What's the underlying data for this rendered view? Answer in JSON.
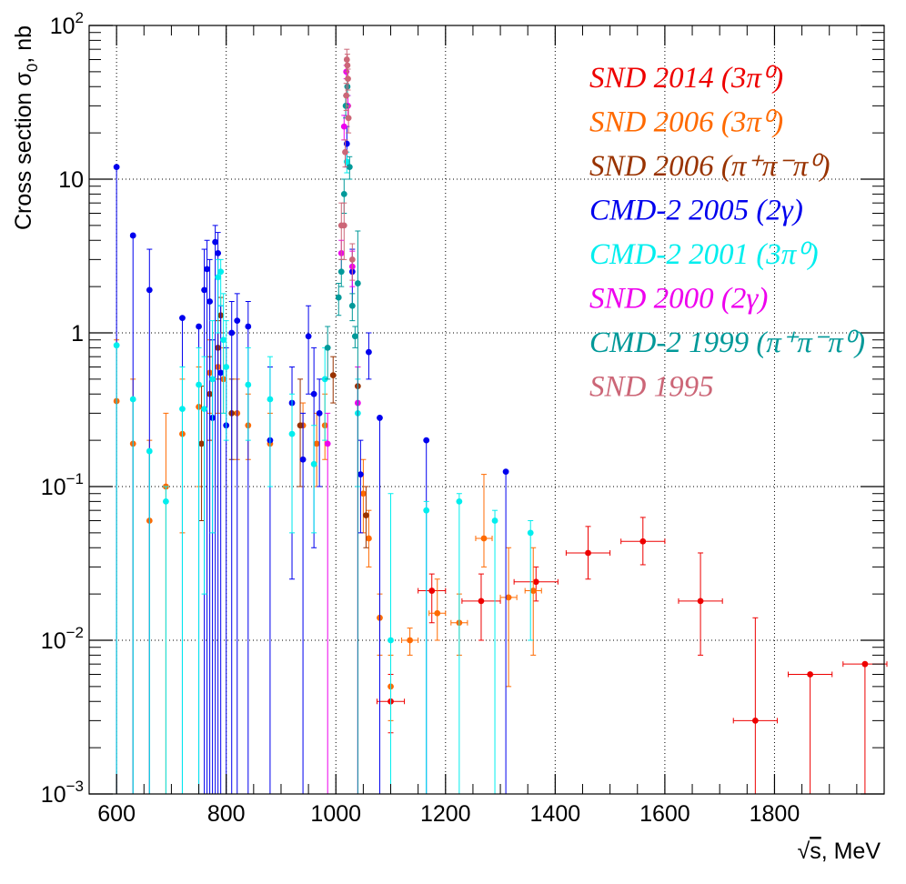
{
  "chart_data": {
    "type": "scatter",
    "title": "",
    "xlabel_parts": {
      "root": "√",
      "var": "s",
      "unit": ", MeV"
    },
    "ylabel_parts": {
      "prefix": "Cross section  σ",
      "sub": "0",
      "suffix": ", nb"
    },
    "x_scale": "linear",
    "y_scale": "log",
    "xlim": [
      550,
      2000
    ],
    "ylim": [
      0.001,
      100
    ],
    "grid": true,
    "legend_position": "top-right",
    "x_ticks": [
      {
        "value": 600,
        "label": "600"
      },
      {
        "value": 800,
        "label": "800"
      },
      {
        "value": 1000,
        "label": "1000"
      },
      {
        "value": 1200,
        "label": "1200"
      },
      {
        "value": 1400,
        "label": "1400"
      },
      {
        "value": 1600,
        "label": "1600"
      },
      {
        "value": 1800,
        "label": "1800"
      }
    ],
    "y_ticks": [
      {
        "value": 0.001,
        "base": "10",
        "exp": "−3"
      },
      {
        "value": 0.01,
        "base": "10",
        "exp": "−2"
      },
      {
        "value": 0.1,
        "base": "10",
        "exp": "−1"
      },
      {
        "value": 1,
        "base": "1",
        "exp": ""
      },
      {
        "value": 10,
        "base": "10",
        "exp": ""
      },
      {
        "value": 100,
        "base": "10",
        "exp": "2"
      }
    ],
    "series": [
      {
        "name": "SND 2014 (3π⁰)",
        "color": "#ee0000",
        "points": [
          {
            "x": 1100,
            "y": 0.004,
            "lo": 0.0025,
            "hi": 0.006,
            "xerr": 25
          },
          {
            "x": 1175,
            "y": 0.021,
            "lo": 0.013,
            "hi": 0.027,
            "xerr": 25
          },
          {
            "x": 1265,
            "y": 0.018,
            "lo": 0.01,
            "hi": 0.027,
            "xerr": 35
          },
          {
            "x": 1365,
            "y": 0.024,
            "lo": 0.018,
            "hi": 0.03,
            "xerr": 40
          },
          {
            "x": 1460,
            "y": 0.037,
            "lo": 0.025,
            "hi": 0.055,
            "xerr": 40
          },
          {
            "x": 1560,
            "y": 0.044,
            "lo": 0.031,
            "hi": 0.063,
            "xerr": 40
          },
          {
            "x": 1665,
            "y": 0.018,
            "lo": 0.008,
            "hi": 0.037,
            "xerr": 40
          },
          {
            "x": 1765,
            "y": 0.003,
            "lo": 0.001,
            "hi": 0.014,
            "xerr": 40
          },
          {
            "x": 1865,
            "y": 0.006,
            "lo": 0.001,
            "hi": 0.006,
            "xerr": 40
          },
          {
            "x": 1965,
            "y": 0.007,
            "lo": 0.001,
            "hi": 0.007,
            "xerr": 40
          }
        ]
      },
      {
        "name": "SND 2006 (3π⁰)",
        "color": "#ff6a00",
        "points": [
          {
            "x": 600,
            "y": 0.36,
            "lo": 0.001,
            "hi": 0.9
          },
          {
            "x": 630,
            "y": 0.19,
            "lo": 0.001,
            "hi": 0.5
          },
          {
            "x": 660,
            "y": 0.06,
            "lo": 0.001,
            "hi": 0.2
          },
          {
            "x": 690,
            "y": 0.1,
            "lo": 0.001,
            "hi": 0.3
          },
          {
            "x": 720,
            "y": 0.22,
            "lo": 0.05,
            "hi": 0.5
          },
          {
            "x": 750,
            "y": 0.33,
            "lo": 0.1,
            "hi": 0.6
          },
          {
            "x": 770,
            "y": 0.55,
            "lo": 0.3,
            "hi": 0.9
          },
          {
            "x": 785,
            "y": 0.6,
            "lo": 0.3,
            "hi": 1.0
          },
          {
            "x": 795,
            "y": 0.5,
            "lo": 0.3,
            "hi": 0.8
          },
          {
            "x": 820,
            "y": 0.3,
            "lo": 0.15,
            "hi": 0.5
          },
          {
            "x": 840,
            "y": 0.25,
            "lo": 0.15,
            "hi": 0.4
          },
          {
            "x": 880,
            "y": 0.19,
            "lo": 0.1,
            "hi": 0.3
          },
          {
            "x": 940,
            "y": 0.25,
            "lo": 0.15,
            "hi": 0.35
          },
          {
            "x": 965,
            "y": 0.19,
            "lo": 0.1,
            "hi": 0.3
          },
          {
            "x": 980,
            "y": 0.25,
            "lo": 0.15,
            "hi": 0.4
          },
          {
            "x": 1050,
            "y": 0.09,
            "lo": 0.05,
            "hi": 0.15
          },
          {
            "x": 1060,
            "y": 0.046,
            "lo": 0.03,
            "hi": 0.07
          },
          {
            "x": 1080,
            "y": 0.014,
            "lo": 0.008,
            "hi": 0.02
          },
          {
            "x": 1100,
            "y": 0.005,
            "lo": 0.003,
            "hi": 0.008
          },
          {
            "x": 1135,
            "y": 0.01,
            "lo": 0.008,
            "hi": 0.012,
            "xerr": 15
          },
          {
            "x": 1185,
            "y": 0.015,
            "lo": 0.01,
            "hi": 0.025,
            "xerr": 15
          },
          {
            "x": 1225,
            "y": 0.013,
            "lo": 0.008,
            "hi": 0.02,
            "xerr": 15
          },
          {
            "x": 1270,
            "y": 0.046,
            "lo": 0.03,
            "hi": 0.12,
            "xerr": 15
          },
          {
            "x": 1315,
            "y": 0.019,
            "lo": 0.005,
            "hi": 0.04,
            "xerr": 15
          },
          {
            "x": 1360,
            "y": 0.021,
            "lo": 0.008,
            "hi": 0.04,
            "xerr": 15
          }
        ]
      },
      {
        "name": "SND 2006 (π⁺π⁻π⁰)",
        "color": "#993300",
        "points": [
          {
            "x": 755,
            "y": 0.19,
            "lo": 0.06,
            "hi": 0.45
          },
          {
            "x": 770,
            "y": 0.4,
            "lo": 0.2,
            "hi": 0.7
          },
          {
            "x": 785,
            "y": 0.8,
            "lo": 0.5,
            "hi": 1.2
          },
          {
            "x": 790,
            "y": 1.3,
            "lo": 1.0,
            "hi": 1.7
          },
          {
            "x": 810,
            "y": 0.3,
            "lo": 0.15,
            "hi": 0.5
          },
          {
            "x": 935,
            "y": 0.25,
            "lo": 0.1,
            "hi": 0.5
          },
          {
            "x": 995,
            "y": 0.53,
            "lo": 0.35,
            "hi": 0.7
          },
          {
            "x": 1040,
            "y": 0.45,
            "lo": 0.3,
            "hi": 0.6
          },
          {
            "x": 1055,
            "y": 0.065,
            "lo": 0.04,
            "hi": 0.1
          }
        ]
      },
      {
        "name": "CMD-2 2005 (2γ)",
        "color": "#0000ee",
        "points": [
          {
            "x": 600,
            "y": 12,
            "lo": 0.001,
            "hi": 12
          },
          {
            "x": 630,
            "y": 4.3,
            "lo": 0.001,
            "hi": 4.3
          },
          {
            "x": 660,
            "y": 1.9,
            "lo": 0.001,
            "hi": 3.5
          },
          {
            "x": 720,
            "y": 1.25,
            "lo": 0.001,
            "hi": 1.25
          },
          {
            "x": 750,
            "y": 1.1,
            "lo": 0.001,
            "hi": 1.1
          },
          {
            "x": 760,
            "y": 1.9,
            "lo": 0.001,
            "hi": 3.5
          },
          {
            "x": 765,
            "y": 2.6,
            "lo": 0.001,
            "hi": 4.0
          },
          {
            "x": 770,
            "y": 1.6,
            "lo": 0.001,
            "hi": 3.0
          },
          {
            "x": 775,
            "y": 0.28,
            "lo": 0.001,
            "hi": 0.9
          },
          {
            "x": 780,
            "y": 3.9,
            "lo": 0.001,
            "hi": 5.0
          },
          {
            "x": 785,
            "y": 3.3,
            "lo": 0.001,
            "hi": 4.5
          },
          {
            "x": 790,
            "y": 0.55,
            "lo": 0.001,
            "hi": 1.5
          },
          {
            "x": 800,
            "y": 0.25,
            "lo": 0.001,
            "hi": 0.8
          },
          {
            "x": 810,
            "y": 1.0,
            "lo": 0.001,
            "hi": 1.6
          },
          {
            "x": 820,
            "y": 1.2,
            "lo": 0.001,
            "hi": 1.8
          },
          {
            "x": 840,
            "y": 1.1,
            "lo": 0.001,
            "hi": 1.6
          },
          {
            "x": 880,
            "y": 0.2,
            "lo": 0.001,
            "hi": 0.6
          },
          {
            "x": 920,
            "y": 0.35,
            "lo": 0.025,
            "hi": 0.6
          },
          {
            "x": 940,
            "y": 0.15,
            "lo": 0.001,
            "hi": 0.3
          },
          {
            "x": 950,
            "y": 0.95,
            "lo": 0.4,
            "hi": 1.5
          },
          {
            "x": 960,
            "y": 0.4,
            "lo": 0.04,
            "hi": 0.8
          },
          {
            "x": 970,
            "y": 0.3,
            "lo": 0.1,
            "hi": 0.5
          },
          {
            "x": 1020,
            "y": 17,
            "lo": 12,
            "hi": 22
          },
          {
            "x": 1030,
            "y": 2.5,
            "lo": 1.5,
            "hi": 3.5
          },
          {
            "x": 1045,
            "y": 0.12,
            "lo": 0.05,
            "hi": 0.2
          },
          {
            "x": 1060,
            "y": 0.75,
            "lo": 0.5,
            "hi": 1.0
          },
          {
            "x": 1080,
            "y": 0.28,
            "lo": 0.001,
            "hi": 0.28
          },
          {
            "x": 1165,
            "y": 0.2,
            "lo": 0.001,
            "hi": 0.2
          },
          {
            "x": 1310,
            "y": 0.125,
            "lo": 0.001,
            "hi": 0.125
          }
        ]
      },
      {
        "name": "CMD-2 2001 (3π⁰)",
        "color": "#00eeee",
        "points": [
          {
            "x": 600,
            "y": 0.83,
            "lo": 0.001,
            "hi": 0.83
          },
          {
            "x": 630,
            "y": 0.37,
            "lo": 0.001,
            "hi": 0.37
          },
          {
            "x": 660,
            "y": 0.17,
            "lo": 0.001,
            "hi": 0.17
          },
          {
            "x": 690,
            "y": 0.08,
            "lo": 0.001,
            "hi": 0.1
          },
          {
            "x": 720,
            "y": 0.32,
            "lo": 0.001,
            "hi": 0.6
          },
          {
            "x": 750,
            "y": 0.46,
            "lo": 0.001,
            "hi": 0.8
          },
          {
            "x": 760,
            "y": 0.32,
            "lo": 0.02,
            "hi": 0.7
          },
          {
            "x": 775,
            "y": 0.5,
            "lo": 0.05,
            "hi": 1.2
          },
          {
            "x": 785,
            "y": 2.3,
            "lo": 1.0,
            "hi": 3.0
          },
          {
            "x": 790,
            "y": 2.5,
            "lo": 1.5,
            "hi": 3.0
          },
          {
            "x": 795,
            "y": 0.9,
            "lo": 0.3,
            "hi": 1.8
          },
          {
            "x": 800,
            "y": 0.6,
            "lo": 0.2,
            "hi": 1.2
          },
          {
            "x": 840,
            "y": 0.46,
            "lo": 0.2,
            "hi": 0.8
          },
          {
            "x": 880,
            "y": 0.37,
            "lo": 0.1,
            "hi": 0.7
          },
          {
            "x": 920,
            "y": 0.22,
            "lo": 0.05,
            "hi": 0.4
          },
          {
            "x": 960,
            "y": 0.14,
            "lo": 0.05,
            "hi": 0.25
          },
          {
            "x": 980,
            "y": 0.5,
            "lo": 0.2,
            "hi": 0.8
          },
          {
            "x": 1020,
            "y": 13,
            "lo": 11,
            "hi": 15
          },
          {
            "x": 1040,
            "y": 0.3,
            "lo": 0.1,
            "hi": 0.5
          },
          {
            "x": 1100,
            "y": 0.01,
            "lo": 0.001,
            "hi": 0.09
          },
          {
            "x": 1165,
            "y": 0.07,
            "lo": 0.001,
            "hi": 0.08
          },
          {
            "x": 1225,
            "y": 0.08,
            "lo": 0.001,
            "hi": 0.09
          },
          {
            "x": 1290,
            "y": 0.06,
            "lo": 0.001,
            "hi": 0.07
          },
          {
            "x": 1355,
            "y": 0.05,
            "lo": 0.01,
            "hi": 0.06
          }
        ]
      },
      {
        "name": "SND 2000 (2γ)",
        "color": "#ee00ee",
        "points": [
          {
            "x": 985,
            "y": 0.19,
            "lo": 0.001,
            "hi": 0.3
          },
          {
            "x": 1010,
            "y": 3.3,
            "lo": 2.5,
            "hi": 4.0
          },
          {
            "x": 1015,
            "y": 22,
            "lo": 18,
            "hi": 26
          },
          {
            "x": 1019,
            "y": 50,
            "lo": 45,
            "hi": 55
          },
          {
            "x": 1022,
            "y": 30,
            "lo": 25,
            "hi": 35
          },
          {
            "x": 1030,
            "y": 2.7,
            "lo": 2.0,
            "hi": 3.4
          },
          {
            "x": 1040,
            "y": 0.35,
            "lo": 0.001,
            "hi": 0.6
          }
        ]
      },
      {
        "name": "CMD-2 1999 (π⁺π⁻π⁰)",
        "color": "#009999",
        "points": [
          {
            "x": 985,
            "y": 0.8,
            "lo": 0.5,
            "hi": 1.1
          },
          {
            "x": 1005,
            "y": 1.7,
            "lo": 1.3,
            "hi": 2.1
          },
          {
            "x": 1010,
            "y": 2.5,
            "lo": 2.0,
            "hi": 3.0
          },
          {
            "x": 1015,
            "y": 8,
            "lo": 6,
            "hi": 10
          },
          {
            "x": 1018,
            "y": 30,
            "lo": 25,
            "hi": 35
          },
          {
            "x": 1021,
            "y": 40,
            "lo": 35,
            "hi": 45
          },
          {
            "x": 1025,
            "y": 12,
            "lo": 10,
            "hi": 14
          },
          {
            "x": 1030,
            "y": 1.5,
            "lo": 1.2,
            "hi": 1.8
          },
          {
            "x": 1035,
            "y": 0.95,
            "lo": 0.8,
            "hi": 1.1
          },
          {
            "x": 1040,
            "y": 2.1,
            "lo": 0.001,
            "hi": 4.6
          }
        ]
      },
      {
        "name": "SND 1995",
        "color": "#cc6677",
        "points": [
          {
            "x": 1010,
            "y": 5.0,
            "lo": 3.0,
            "hi": 7.0
          },
          {
            "x": 1015,
            "y": 5.0,
            "lo": 3.0,
            "hi": 7.0
          },
          {
            "x": 1017,
            "y": 15,
            "lo": 12,
            "hi": 18
          },
          {
            "x": 1019,
            "y": 35,
            "lo": 28,
            "hi": 42
          },
          {
            "x": 1020,
            "y": 60,
            "lo": 50,
            "hi": 70
          },
          {
            "x": 1021,
            "y": 55,
            "lo": 45,
            "hi": 65
          },
          {
            "x": 1022,
            "y": 45,
            "lo": 38,
            "hi": 52
          },
          {
            "x": 1023,
            "y": 25,
            "lo": 20,
            "hi": 30
          },
          {
            "x": 1030,
            "y": 3.0,
            "lo": 2.2,
            "hi": 3.8
          }
        ]
      }
    ]
  }
}
